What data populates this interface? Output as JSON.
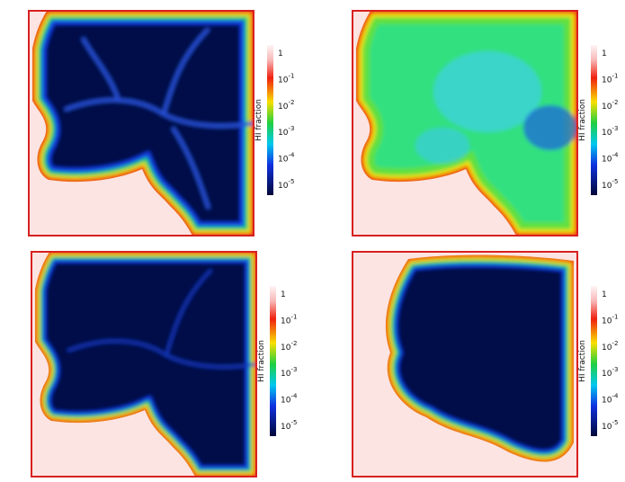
{
  "panels": [
    {
      "colorbar": {
        "label": "HI fraction",
        "ticks": [
          "1",
          {
            "base": "10",
            "exponent": "-1"
          },
          {
            "base": "10",
            "exponent": "-2"
          },
          {
            "base": "10",
            "exponent": "-3"
          },
          {
            "base": "10",
            "exponent": "-4"
          },
          {
            "base": "10",
            "exponent": "-5"
          }
        ]
      }
    },
    {
      "colorbar": {
        "label": "HI fraction",
        "ticks": [
          "1",
          {
            "base": "10",
            "exponent": "-1"
          },
          {
            "base": "10",
            "exponent": "-2"
          },
          {
            "base": "10",
            "exponent": "-3"
          },
          {
            "base": "10",
            "exponent": "-4"
          },
          {
            "base": "10",
            "exponent": "-5"
          }
        ]
      }
    },
    {
      "colorbar": {
        "label": "HI fraction",
        "ticks": [
          "1",
          {
            "base": "10",
            "exponent": "-1"
          },
          {
            "base": "10",
            "exponent": "-2"
          },
          {
            "base": "10",
            "exponent": "-3"
          },
          {
            "base": "10",
            "exponent": "-4"
          },
          {
            "base": "10",
            "exponent": "-5"
          }
        ]
      }
    },
    {
      "colorbar": {
        "label": "HI fraction",
        "ticks": [
          "1",
          {
            "base": "10",
            "exponent": "-1"
          },
          {
            "base": "10",
            "exponent": "-2"
          },
          {
            "base": "10",
            "exponent": "-3"
          },
          {
            "base": "10",
            "exponent": "-4"
          },
          {
            "base": "10",
            "exponent": "-5"
          }
        ]
      }
    }
  ]
}
